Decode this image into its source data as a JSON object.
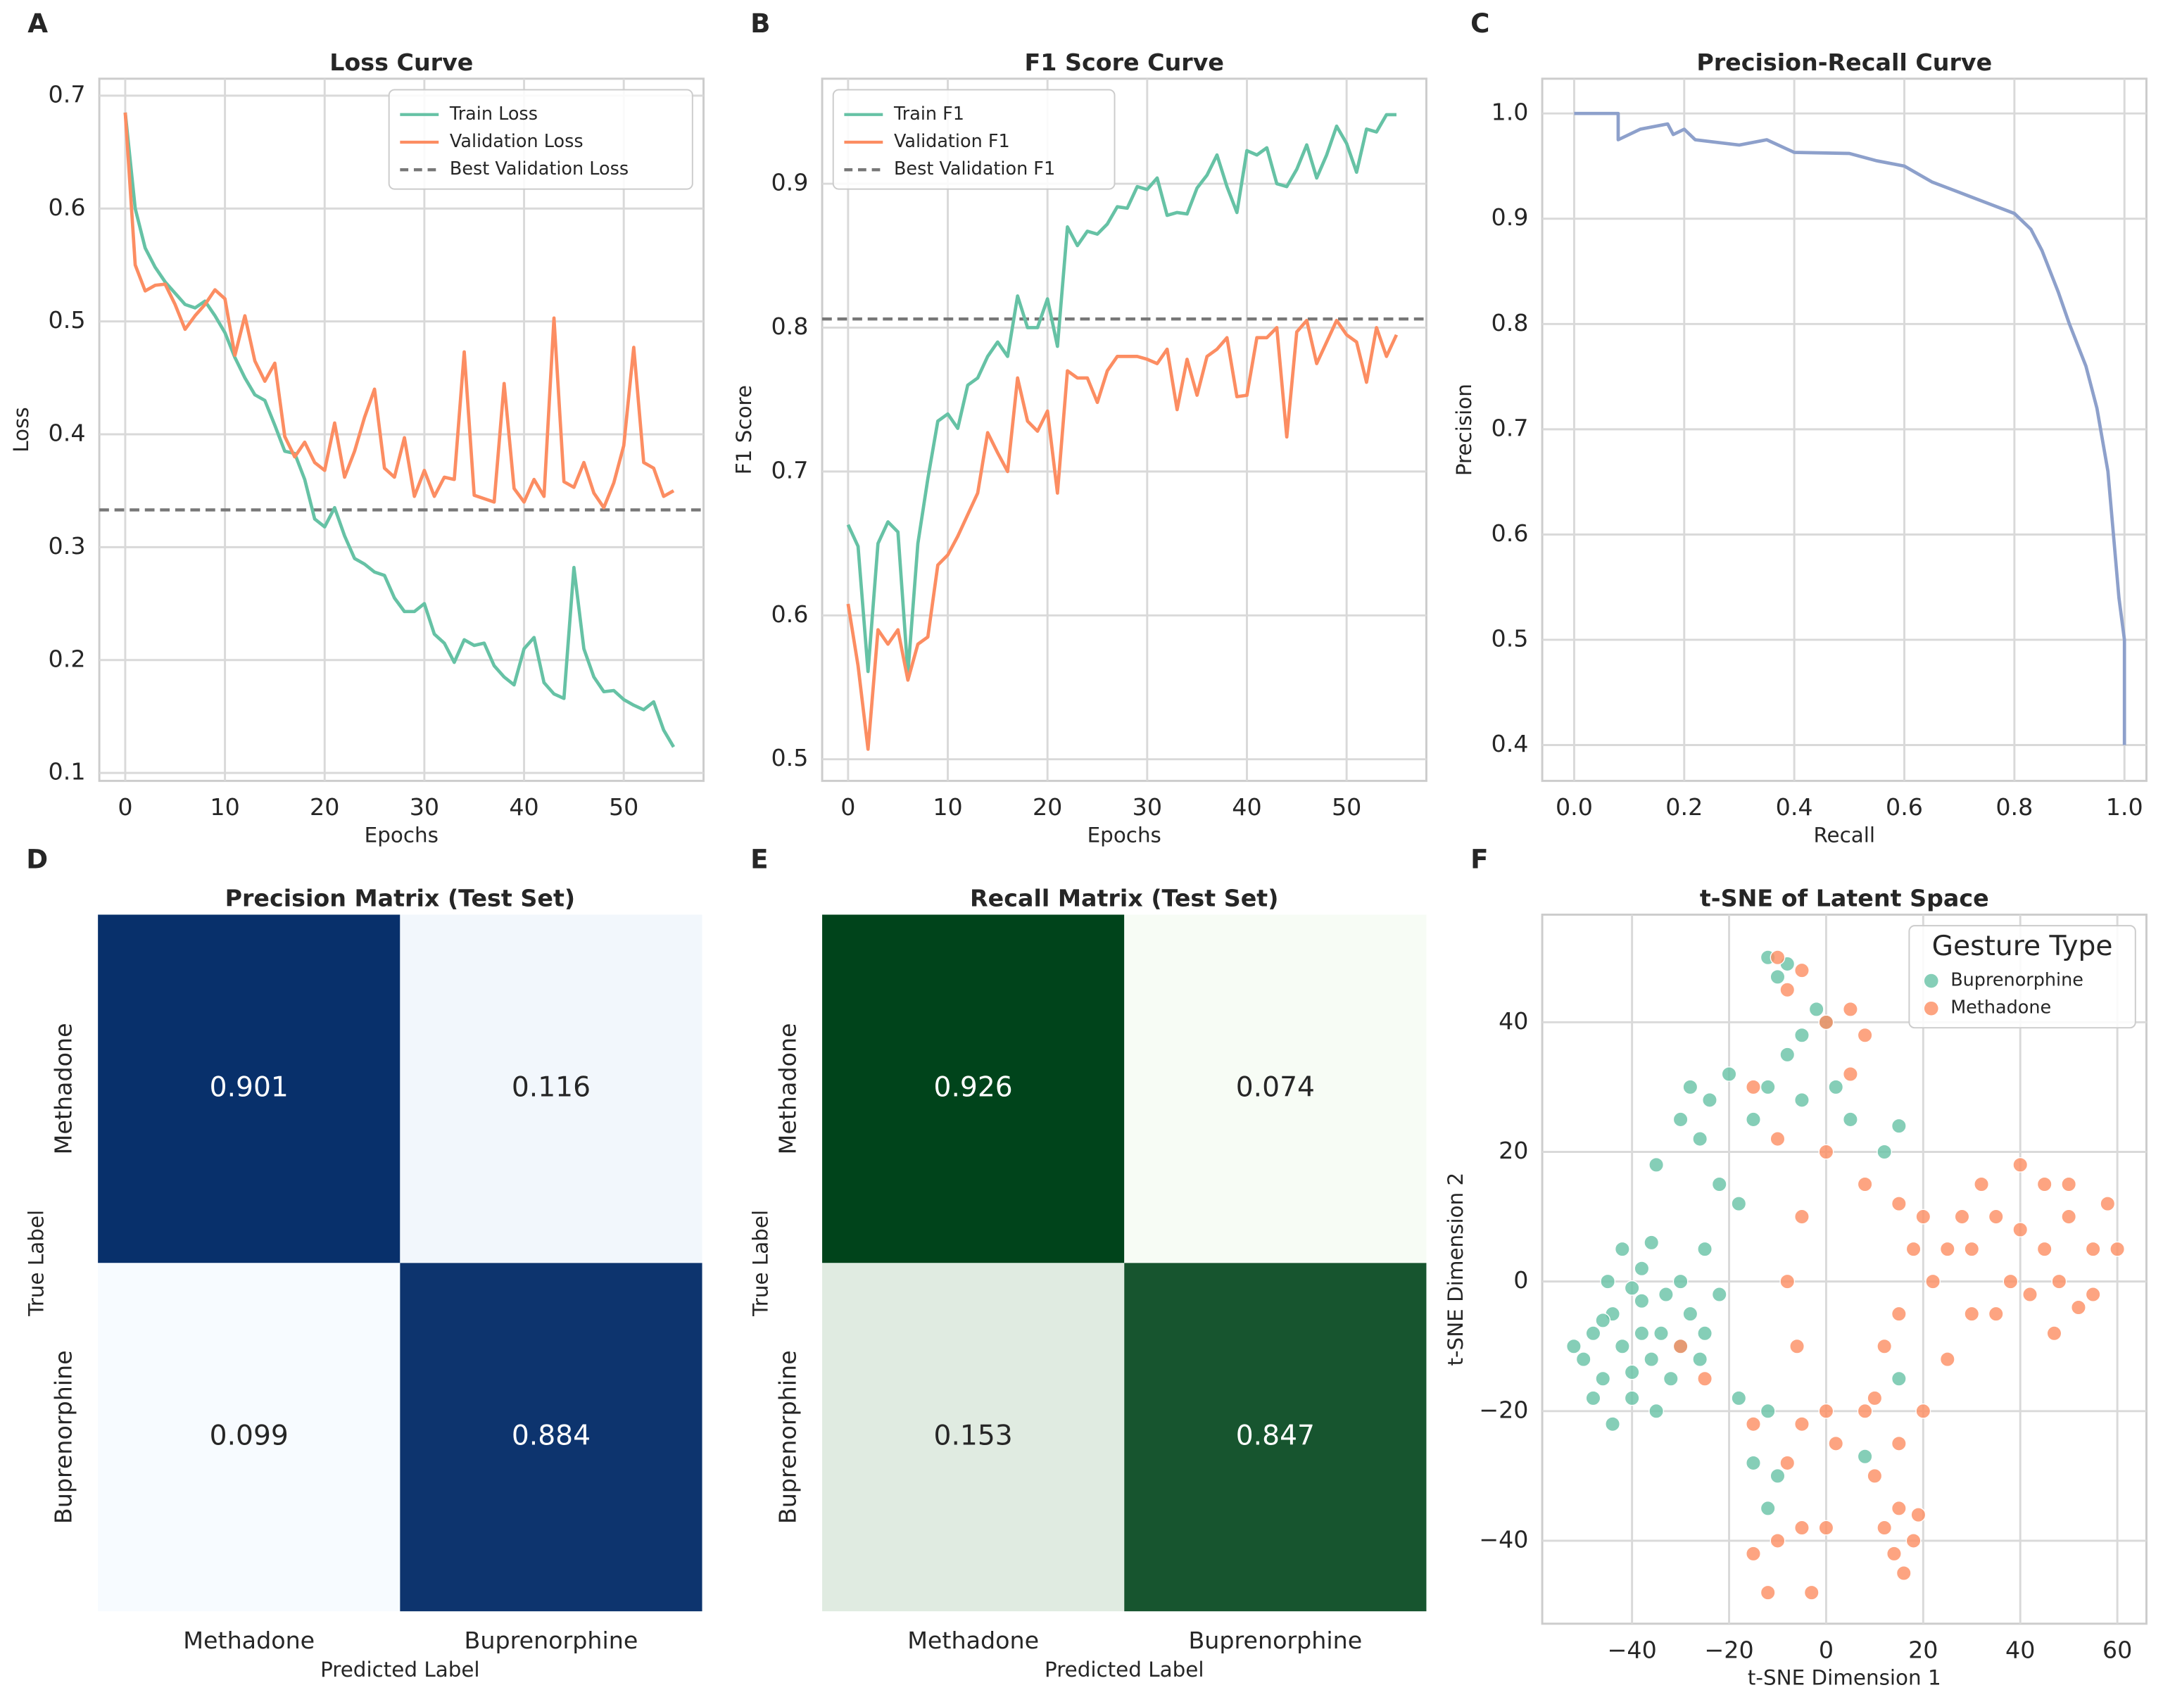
{
  "chart_data": [
    {
      "type": "line",
      "panel_label": "A",
      "title": "Loss Curve",
      "xlabel": "Epochs",
      "ylabel": "Loss",
      "x": [
        0,
        1,
        2,
        3,
        4,
        5,
        6,
        7,
        8,
        9,
        10,
        11,
        12,
        13,
        14,
        15,
        16,
        17,
        18,
        19,
        20,
        21,
        22,
        23,
        24,
        25,
        26,
        27,
        28,
        29,
        30,
        31,
        32,
        33,
        34,
        35,
        36,
        37,
        38,
        39,
        40,
        41,
        42,
        43,
        44,
        45,
        46,
        47,
        48,
        49,
        50,
        51,
        52,
        53,
        54,
        55
      ],
      "series": [
        {
          "name": "Train Loss",
          "color": "#66c2a5",
          "values": [
            0.685,
            0.6,
            0.565,
            0.548,
            0.535,
            0.525,
            0.515,
            0.512,
            0.518,
            0.505,
            0.49,
            0.468,
            0.45,
            0.435,
            0.43,
            0.408,
            0.385,
            0.383,
            0.36,
            0.325,
            0.318,
            0.335,
            0.31,
            0.29,
            0.285,
            0.278,
            0.275,
            0.255,
            0.243,
            0.243,
            0.25,
            0.223,
            0.215,
            0.198,
            0.218,
            0.213,
            0.215,
            0.195,
            0.185,
            0.178,
            0.21,
            0.22,
            0.18,
            0.17,
            0.166,
            0.282,
            0.21,
            0.185,
            0.172,
            0.173,
            0.165,
            0.16,
            0.156,
            0.163,
            0.138,
            0.123
          ]
        },
        {
          "name": "Validation Loss",
          "color": "#fc8d62",
          "values": [
            0.685,
            0.55,
            0.527,
            0.532,
            0.533,
            0.515,
            0.493,
            0.505,
            0.515,
            0.528,
            0.52,
            0.47,
            0.505,
            0.465,
            0.447,
            0.463,
            0.398,
            0.38,
            0.393,
            0.375,
            0.368,
            0.41,
            0.362,
            0.385,
            0.415,
            0.44,
            0.37,
            0.362,
            0.397,
            0.345,
            0.368,
            0.345,
            0.362,
            0.36,
            0.473,
            0.346,
            0.343,
            0.34,
            0.445,
            0.352,
            0.34,
            0.36,
            0.345,
            0.503,
            0.358,
            0.353,
            0.375,
            0.348,
            0.335,
            0.357,
            0.39,
            0.477,
            0.375,
            0.37,
            0.345,
            0.35
          ]
        }
      ],
      "hlines": [
        {
          "name": "Best Validation Loss",
          "value": 0.333,
          "color": "#777777"
        }
      ],
      "xlim": [
        -2.6,
        58
      ],
      "ylim": [
        0.093,
        0.715
      ],
      "xticks": [
        0,
        10,
        20,
        30,
        40,
        50
      ],
      "yticks": [
        0.1,
        0.2,
        0.3,
        0.4,
        0.5,
        0.6,
        0.7
      ],
      "grid": true,
      "legend": "upper right"
    },
    {
      "type": "line",
      "panel_label": "B",
      "title": "F1 Score Curve",
      "xlabel": "Epochs",
      "ylabel": "F1 Score",
      "x": [
        0,
        1,
        2,
        3,
        4,
        5,
        6,
        7,
        8,
        9,
        10,
        11,
        12,
        13,
        14,
        15,
        16,
        17,
        18,
        19,
        20,
        21,
        22,
        23,
        24,
        25,
        26,
        27,
        28,
        29,
        30,
        31,
        32,
        33,
        34,
        35,
        36,
        37,
        38,
        39,
        40,
        41,
        42,
        43,
        44,
        45,
        46,
        47,
        48,
        49,
        50,
        51,
        52,
        53,
        54,
        55
      ],
      "series": [
        {
          "name": "Train F1",
          "color": "#66c2a5",
          "values": [
            0.663,
            0.648,
            0.561,
            0.65,
            0.665,
            0.658,
            0.56,
            0.65,
            0.695,
            0.735,
            0.74,
            0.73,
            0.76,
            0.765,
            0.78,
            0.79,
            0.78,
            0.822,
            0.8,
            0.8,
            0.82,
            0.787,
            0.87,
            0.857,
            0.867,
            0.865,
            0.872,
            0.884,
            0.883,
            0.898,
            0.896,
            0.904,
            0.878,
            0.88,
            0.879,
            0.897,
            0.906,
            0.92,
            0.898,
            0.88,
            0.923,
            0.92,
            0.925,
            0.9,
            0.898,
            0.91,
            0.927,
            0.904,
            0.92,
            0.94,
            0.928,
            0.908,
            0.938,
            0.936,
            0.948,
            0.948
          ]
        },
        {
          "name": "Validation F1",
          "color": "#fc8d62",
          "values": [
            0.608,
            0.565,
            0.507,
            0.59,
            0.58,
            0.59,
            0.555,
            0.58,
            0.585,
            0.635,
            0.642,
            0.655,
            0.67,
            0.685,
            0.727,
            0.713,
            0.7,
            0.765,
            0.735,
            0.728,
            0.742,
            0.685,
            0.77,
            0.765,
            0.765,
            0.748,
            0.77,
            0.78,
            0.78,
            0.78,
            0.778,
            0.775,
            0.785,
            0.743,
            0.778,
            0.753,
            0.78,
            0.785,
            0.793,
            0.752,
            0.753,
            0.793,
            0.793,
            0.8,
            0.724,
            0.797,
            0.805,
            0.775,
            0.79,
            0.805,
            0.795,
            0.79,
            0.762,
            0.8,
            0.78,
            0.795
          ]
        }
      ],
      "hlines": [
        {
          "name": "Best Validation F1",
          "value": 0.806,
          "color": "#777777"
        }
      ],
      "xlim": [
        -2.6,
        58
      ],
      "ylim": [
        0.485,
        0.973
      ],
      "xticks": [
        0,
        10,
        20,
        30,
        40,
        50
      ],
      "yticks": [
        0.5,
        0.6,
        0.7,
        0.8,
        0.9
      ],
      "grid": true,
      "legend": "upper left"
    },
    {
      "type": "line",
      "panel_label": "C",
      "title": "Precision-Recall Curve",
      "xlabel": "Recall",
      "ylabel": "Precision",
      "series": [
        {
          "color": "#8da0cb",
          "x": [
            0,
            0.08,
            0.08,
            0.12,
            0.17,
            0.18,
            0.2,
            0.22,
            0.3,
            0.35,
            0.4,
            0.5,
            0.55,
            0.6,
            0.65,
            0.7,
            0.75,
            0.8,
            0.83,
            0.85,
            0.88,
            0.9,
            0.93,
            0.95,
            0.97,
            0.98,
            0.99,
            1.0,
            1.0
          ],
          "values": [
            1.0,
            1.0,
            0.975,
            0.985,
            0.99,
            0.98,
            0.985,
            0.975,
            0.97,
            0.975,
            0.963,
            0.962,
            0.955,
            0.95,
            0.935,
            0.925,
            0.915,
            0.905,
            0.89,
            0.87,
            0.83,
            0.8,
            0.76,
            0.72,
            0.66,
            0.6,
            0.54,
            0.5,
            0.4
          ]
        }
      ],
      "xlim": [
        -0.058,
        1.04
      ],
      "ylim": [
        0.366,
        1.033
      ],
      "xticks": [
        {
          "value": 0,
          "label": "0.0"
        },
        0.2,
        0.4,
        0.6,
        0.8,
        {
          "value": 1,
          "label": "1.0"
        }
      ],
      "yticks": [
        0.4,
        0.5,
        0.6,
        0.7,
        0.8,
        0.9,
        {
          "value": 1,
          "label": "1.0"
        }
      ],
      "grid": true
    },
    {
      "type": "heatmap",
      "panel_label": "D",
      "title": "Precision Matrix (Test Set)",
      "xlabel": "Predicted Label",
      "ylabel": "True Label",
      "x_categories": [
        "Methadone",
        "Buprenorphine"
      ],
      "y_categories": [
        "Methadone",
        "Buprenorphine"
      ],
      "values": [
        [
          0.901,
          0.116
        ],
        [
          0.099,
          0.884
        ]
      ],
      "colormap": [
        "#f7fbff",
        "#08306b"
      ]
    },
    {
      "type": "heatmap",
      "panel_label": "E",
      "title": "Recall Matrix (Test Set)",
      "xlabel": "Predicted Label",
      "ylabel": "True Label",
      "x_categories": [
        "Methadone",
        "Buprenorphine"
      ],
      "y_categories": [
        "Methadone",
        "Buprenorphine"
      ],
      "values": [
        [
          0.926,
          0.074
        ],
        [
          0.153,
          0.847
        ]
      ],
      "colormap": [
        "#f7fcf5",
        "#00441b"
      ]
    },
    {
      "type": "scatter",
      "panel_label": "F",
      "title": "t-SNE of Latent Space",
      "xlabel": "t-SNE Dimension 1",
      "ylabel": "t-SNE Dimension 2",
      "legend_title": "Gesture Type",
      "legend": "upper right",
      "series": [
        {
          "name": "Buprenorphine",
          "color": "#66c2a5",
          "x": [
            -50,
            -48,
            -46,
            -44,
            -42,
            -40,
            -38,
            -36,
            -34,
            -32,
            -30,
            -28,
            -45,
            -42,
            -38,
            -35,
            -48,
            -52,
            -40,
            -33,
            -26,
            -44,
            -36,
            -30,
            -25,
            -35,
            -30,
            -28,
            -24,
            -20,
            -26,
            -22,
            -18,
            -15,
            -12,
            -8,
            -5,
            -2,
            0,
            -10,
            -12,
            -8,
            -5,
            2,
            5,
            12,
            15,
            -25,
            -22,
            -12,
            -10,
            -15,
            -12,
            -18,
            15,
            8,
            -40,
            -46,
            -38
          ],
          "values": [
            -12,
            -8,
            -15,
            -5,
            -10,
            -18,
            -3,
            -12,
            -8,
            -15,
            -10,
            -5,
            0,
            5,
            2,
            -20,
            -18,
            -10,
            -14,
            -2,
            -12,
            -22,
            6,
            0,
            -8,
            18,
            25,
            30,
            28,
            32,
            22,
            15,
            12,
            25,
            30,
            35,
            38,
            42,
            40,
            47,
            50,
            49,
            28,
            30,
            25,
            20,
            24,
            5,
            -2,
            -35,
            -30,
            -28,
            -20,
            -18,
            -15,
            -27,
            -1,
            -6,
            -8
          ]
        },
        {
          "name": "Methadone",
          "color": "#fc8d62",
          "x": [
            30,
            35,
            40,
            45,
            50,
            55,
            38,
            42,
            48,
            52,
            58,
            55,
            32,
            28,
            25,
            20,
            22,
            45,
            40,
            50,
            35,
            60,
            30,
            47,
            15,
            18,
            12,
            16,
            14,
            19,
            10,
            15,
            20,
            10,
            12,
            15,
            18,
            0,
            -5,
            2,
            -8,
            -10,
            -5,
            0,
            -15,
            -12,
            -5,
            -10,
            -8,
            0,
            5,
            8,
            5,
            0,
            -10,
            -15,
            -5,
            -8,
            -6,
            -30,
            -25,
            8,
            15,
            25,
            -15,
            -3,
            8
          ],
          "values": [
            5,
            10,
            8,
            5,
            10,
            5,
            0,
            -2,
            0,
            -4,
            12,
            -2,
            15,
            10,
            5,
            10,
            0,
            15,
            18,
            15,
            -5,
            5,
            -5,
            -8,
            -35,
            -40,
            -38,
            -45,
            -42,
            -36,
            -30,
            -25,
            -20,
            -18,
            -10,
            -5,
            5,
            -20,
            -22,
            -25,
            -28,
            -40,
            -38,
            -38,
            -42,
            -48,
            48,
            50,
            45,
            40,
            42,
            38,
            32,
            20,
            22,
            30,
            10,
            0,
            -10,
            -10,
            -15,
            15,
            12,
            -12,
            -22,
            -48,
            -20
          ]
        }
      ],
      "xlim": [
        -58.5,
        66
      ],
      "ylim": [
        -52.8,
        56.6
      ],
      "xticks": [
        {
          "value": -40,
          "label": "−40"
        },
        {
          "value": -20,
          "label": "−20"
        },
        0,
        20,
        40,
        60
      ],
      "yticks": [
        {
          "value": -40,
          "label": "−40"
        },
        {
          "value": -20,
          "label": "−20"
        },
        0,
        20,
        40
      ],
      "grid": true
    }
  ]
}
